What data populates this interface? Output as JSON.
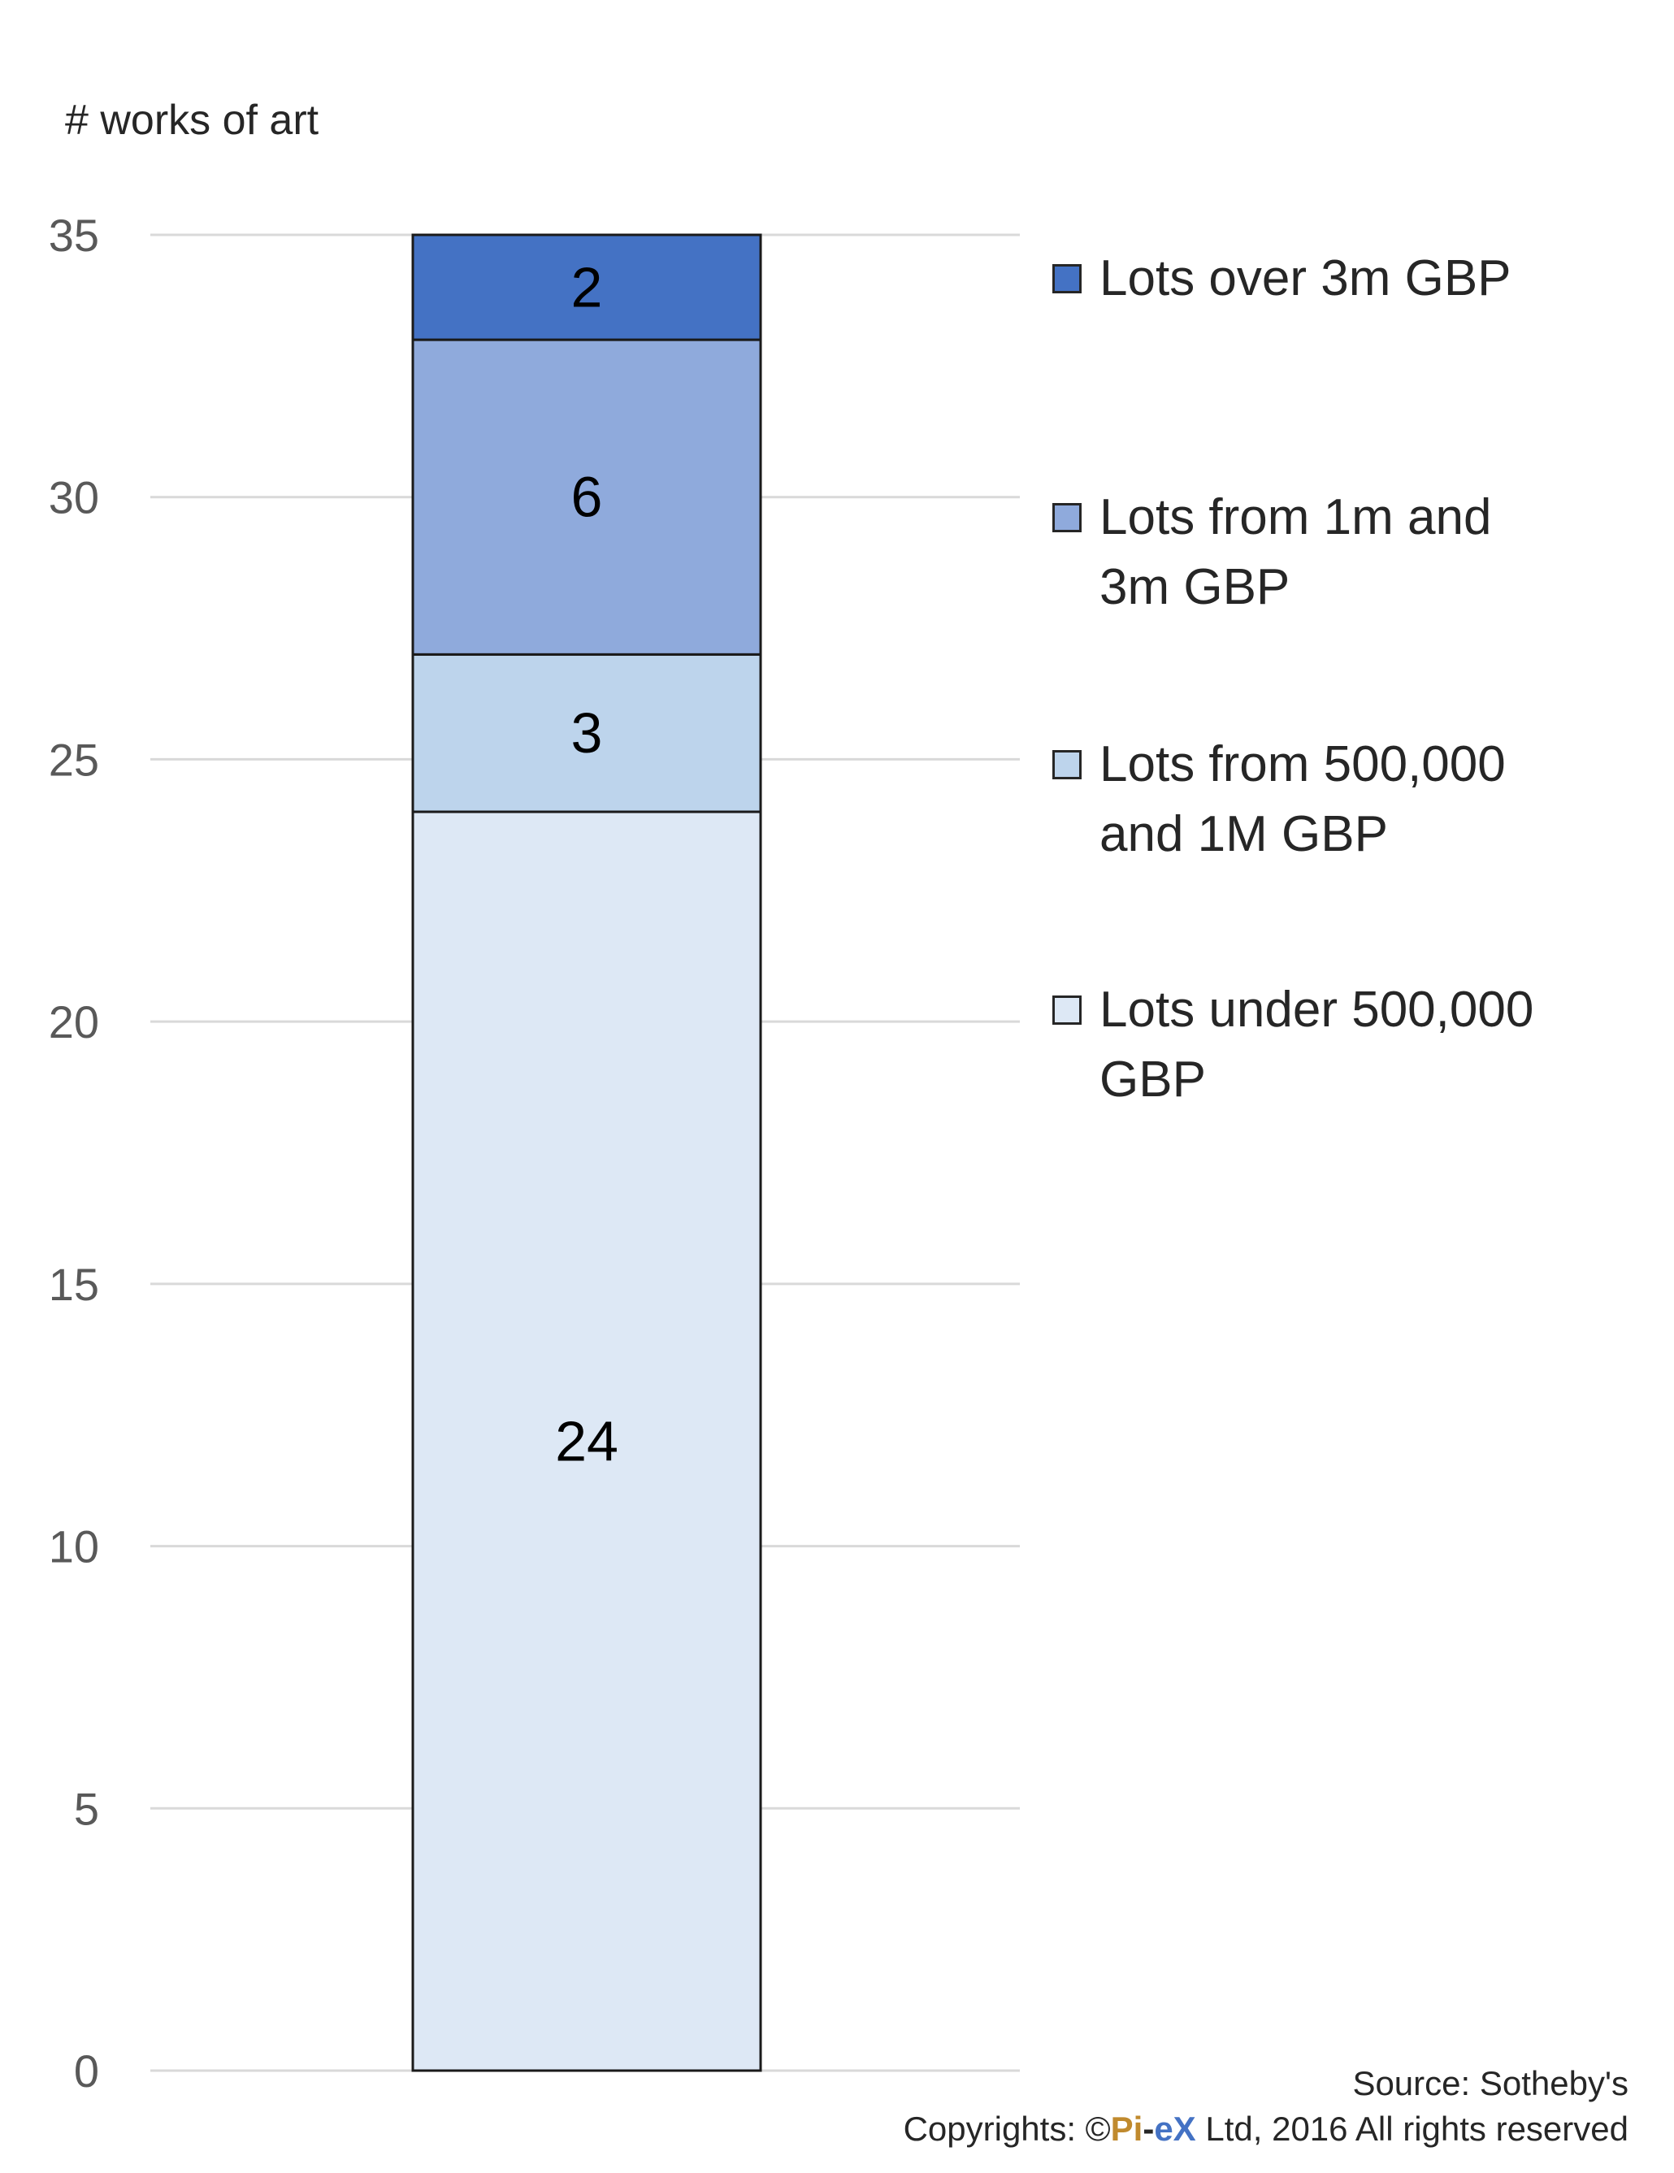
{
  "chart_data": {
    "type": "bar",
    "stacked": true,
    "categories": [
      ""
    ],
    "series": [
      {
        "name": "Lots under 500,000 GBP",
        "values": [
          24
        ],
        "color": "#dde8f5"
      },
      {
        "name": "Lots from 500,000 and 1M GBP",
        "values": [
          3
        ],
        "color": "#bdd4ec"
      },
      {
        "name": "Lots from 1m and 3m  GBP",
        "values": [
          6
        ],
        "color": "#8faadc"
      },
      {
        "name": "Lots over 3m GBP",
        "values": [
          2
        ],
        "color": "#4472c4"
      }
    ],
    "data_labels": [
      "24",
      "3",
      "6",
      "2"
    ],
    "ylabel": "# works of art",
    "yticks": [
      0,
      5,
      10,
      15,
      20,
      25,
      30,
      35
    ],
    "ytick_labels": [
      "0",
      "5",
      "10",
      "15",
      "20",
      "25",
      "30",
      "35"
    ],
    "ylim": [
      0,
      35
    ],
    "grid": true,
    "legend_position": "right",
    "legend_order": [
      "Lots over 3m GBP",
      "Lots from 1m and 3m  GBP",
      "Lots from 500,000 and 1M GBP",
      "Lots under 500,000 GBP"
    ]
  },
  "legend": {
    "items": [
      {
        "line1": "Lots over 3m GBP",
        "line2": "",
        "color": "#4472c4"
      },
      {
        "line1": "Lots from 1m and",
        "line2": "3m  GBP",
        "color": "#8faadc"
      },
      {
        "line1": "Lots from 500,000",
        "line2": "and 1M GBP",
        "color": "#bdd4ec"
      },
      {
        "line1": "Lots under 500,000",
        "line2": "GBP",
        "color": "#dde8f5"
      }
    ]
  },
  "footer": {
    "source": "Source: Sotheby's",
    "copyright_prefix": "Copyrights: ©",
    "brand_pi": "Pi",
    "brand_dash": "-",
    "brand_ex": "eX",
    "copyright_suffix": " Ltd, 2016 All rights reserved"
  }
}
